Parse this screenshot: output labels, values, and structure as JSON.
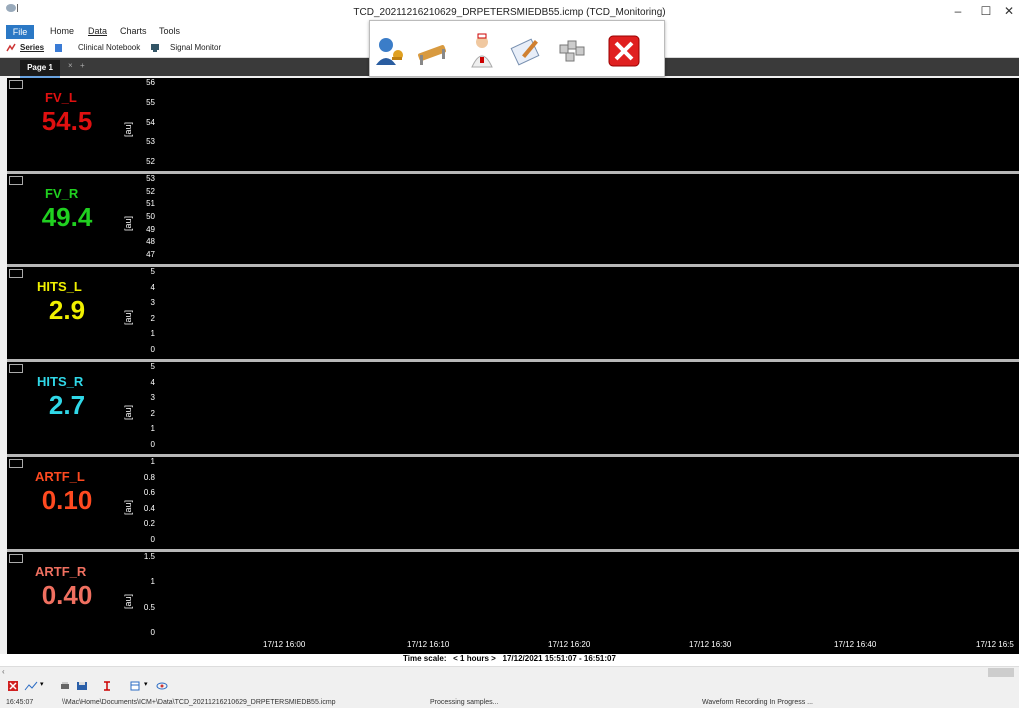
{
  "window": {
    "title": "TCD_20211216210629_DRPETERSMIEDB55.icmp  (TCD_Monitoring)",
    "minimize": "–",
    "maximize": "☐",
    "close": "✕"
  },
  "menu": {
    "file": "File",
    "items": [
      "Home",
      "Data",
      "Charts",
      "Tools"
    ]
  },
  "ribbon": {
    "series": "Series",
    "clinical_notebook": "Clinical Notebook",
    "signal_monitor": "Signal Monitor"
  },
  "tabs": {
    "page1": "Page 1",
    "close": "×",
    "add": "+"
  },
  "popup_toolbar": {
    "icons": [
      "user-key-icon",
      "patient-bed-icon",
      "doctor-icon",
      "notebook-pen-icon",
      "keys-icon",
      "close-red-icon"
    ]
  },
  "panels": [
    {
      "name": "FV_L",
      "value": "54.5",
      "color": "#e01010",
      "unit": "[au]",
      "yticks": [
        "56",
        "55",
        "54",
        "53",
        "52"
      ]
    },
    {
      "name": "FV_R",
      "value": "49.4",
      "color": "#20d020",
      "unit": "[au]",
      "yticks": [
        "53",
        "52",
        "51",
        "50",
        "49",
        "48",
        "47"
      ]
    },
    {
      "name": "HITS_L",
      "value": "2.9",
      "color": "#f0f000",
      "unit": "[au]",
      "yticks": [
        "5",
        "4",
        "3",
        "2",
        "1",
        "0"
      ]
    },
    {
      "name": "HITS_R",
      "value": "2.7",
      "color": "#30d8e8",
      "unit": "[au]",
      "yticks": [
        "5",
        "4",
        "3",
        "2",
        "1",
        "0"
      ]
    },
    {
      "name": "ARTF_L",
      "value": "0.10",
      "color": "#ff4a20",
      "unit": "[au]",
      "yticks": [
        "1",
        "0.8",
        "0.6",
        "0.4",
        "0.2",
        "0"
      ]
    },
    {
      "name": "ARTF_R",
      "value": "0.40",
      "color": "#f07060",
      "unit": "[au]",
      "yticks": [
        "1.5",
        "1",
        "0.5",
        "0"
      ]
    }
  ],
  "time_axis": {
    "labels": [
      "17/12 16:00",
      "17/12 16:10",
      "17/12 16:20",
      "17/12 16:30",
      "17/12 16:40",
      "17/12 16:5"
    ]
  },
  "time_scale": {
    "label": "Time scale:",
    "range_control": "< 1 hours >",
    "range": "17/12/2021 15:51:07 - 16:51:07"
  },
  "status": {
    "time": "16:45:07",
    "path": "\\\\Mac\\Home\\Documents\\ICM+\\Data\\TCD_20211216210629_DRPETERSMIEDB55.icmp",
    "processing": "Processing samples...",
    "recording": "Waveform Recording In Progress ..."
  }
}
